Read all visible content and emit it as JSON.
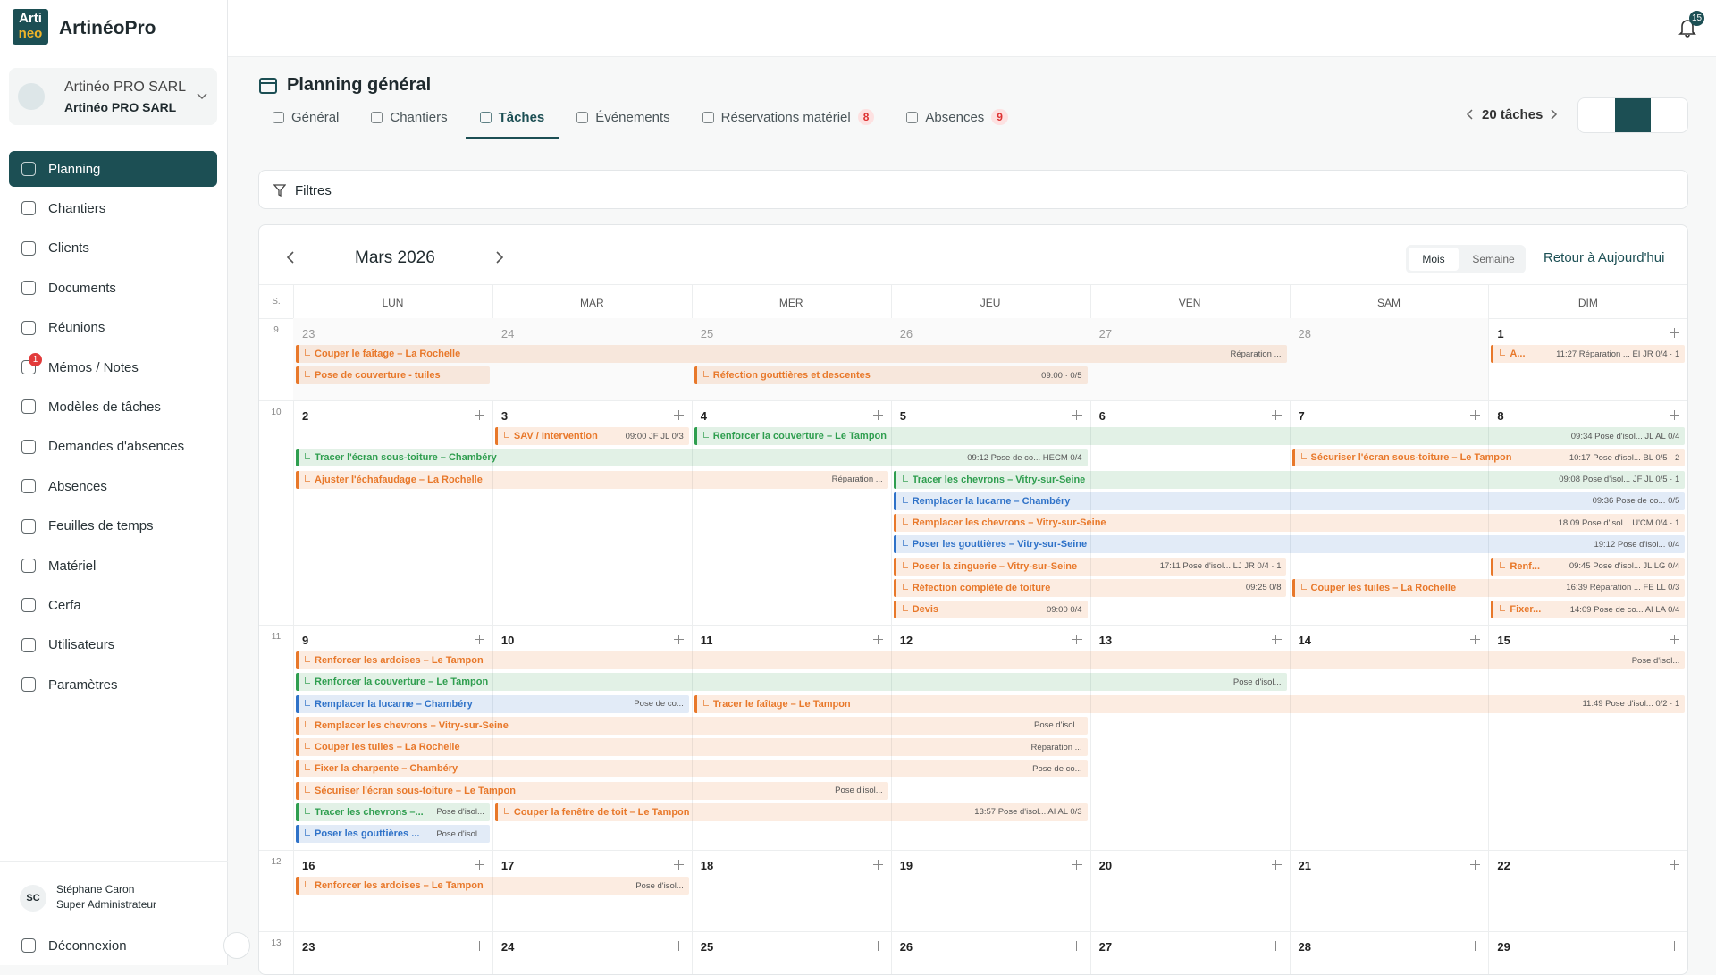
{
  "app": {
    "logo_top": "Arti",
    "logo_bottom": "neo",
    "name": "ArtinéoPro"
  },
  "notifications": 15,
  "company": {
    "name": "Artinéo PRO SARL",
    "subtitle": "Artinéo PRO SARL"
  },
  "nav": [
    {
      "label": "Planning"
    },
    {
      "label": "Chantiers"
    },
    {
      "label": "Clients"
    },
    {
      "label": "Documents"
    },
    {
      "label": "Réunions"
    },
    {
      "label": "Mémos / Notes",
      "badge": 1
    },
    {
      "label": "Modèles de tâches"
    },
    {
      "label": "Demandes d'absences"
    },
    {
      "label": "Absences"
    },
    {
      "label": "Feuilles de temps"
    },
    {
      "label": "Matériel"
    },
    {
      "label": "Cerfa"
    },
    {
      "label": "Utilisateurs"
    },
    {
      "label": "Paramètres"
    }
  ],
  "user": {
    "initials": "SC",
    "name": "Stéphane Caron",
    "role": "Super Administrateur"
  },
  "logout": "Déconnexion",
  "page": {
    "title": "Planning général",
    "tabs": [
      {
        "label": "Général"
      },
      {
        "label": "Chantiers"
      },
      {
        "label": "Tâches"
      },
      {
        "label": "Événements"
      },
      {
        "label": "Réservations matériel",
        "count": 8
      },
      {
        "label": "Absences",
        "count": 9
      }
    ],
    "task_count": "20 tâches",
    "filters": "Filtres"
  },
  "calendar": {
    "month": "Mars 2026",
    "views": [
      "Mois",
      "Semaine"
    ],
    "today": "Retour à Aujourd'hui",
    "week_header": "S.",
    "weekdays": [
      "LUN",
      "MAR",
      "MER",
      "JEU",
      "VEN",
      "SAM",
      "DIM"
    ],
    "weeks": [
      {
        "number": 9,
        "days": [
          23,
          24,
          25,
          26,
          27,
          28,
          1
        ],
        "tasks": [
          {
            "label": "Couper le faîtage – La Rochelle",
            "meta": "Réparation ...",
            "color": "#e8782a"
          },
          {
            "label": "Pose de couverture - tuiles",
            "meta": "",
            "color": "#e8782a"
          },
          {
            "label": "Réfection gouttières et descentes",
            "meta": "09:00 · 0/5",
            "color": "#e8782a"
          },
          {
            "label": "A...",
            "meta": "11:27 Réparation ... EI JR 0/4 · 1",
            "color": "#e8782a"
          }
        ]
      },
      {
        "number": 10,
        "days": [
          2,
          3,
          4,
          5,
          6,
          7,
          8
        ],
        "tasks": [
          {
            "label": "SAV / Intervention",
            "meta": "09:00 JF JL 0/3",
            "color": "#e8782a"
          },
          {
            "label": "Renforcer la couverture – Le Tampon",
            "meta": "09:34 Pose d'isol... JL AL 0/4",
            "color": "#2f9e4f"
          },
          {
            "label": "Tracer l'écran sous-toiture – Chambéry",
            "meta": "09:12 Pose de co... HECM 0/4",
            "color": "#2f9e4f"
          },
          {
            "label": "Sécuriser l'écran sous-toiture – Le Tampon",
            "meta": "10:17 Pose d'isol... BL 0/5 · 2",
            "color": "#e8782a"
          },
          {
            "label": "Ajuster l'échafaudage – La Rochelle",
            "meta": "Réparation ...",
            "color": "#e8782a"
          },
          {
            "label": "Tracer les chevrons – Vitry-sur-Seine",
            "meta": "09:08 Pose d'isol... JF JL 0/5 · 1",
            "color": "#2f9e4f"
          },
          {
            "label": "Remplacer la lucarne – Chambéry",
            "meta": "09:36 Pose de co... 0/5",
            "color": "#2f72c8"
          },
          {
            "label": "Remplacer les chevrons – Vitry-sur-Seine",
            "meta": "18:09 Pose d'isol... U'CM 0/4 · 1",
            "color": "#e8782a"
          },
          {
            "label": "Poser les gouttières – Vitry-sur-Seine",
            "meta": "19:12 Pose d'isol... 0/4",
            "color": "#2f72c8"
          },
          {
            "label": "Poser la zinguerie – Vitry-sur-Seine",
            "meta": "17:11 Pose d'isol... LJ JR 0/4 · 1",
            "color": "#e8782a"
          },
          {
            "label": "Renf...",
            "meta": "09:45 Pose d'isol... JL LG 0/4",
            "color": "#e8782a"
          },
          {
            "label": "Réfection complète de toiture",
            "meta": "09:25 0/8",
            "color": "#e8782a"
          },
          {
            "label": "Couper les tuiles – La Rochelle",
            "meta": "16:39 Réparation ... FE LL 0/3",
            "color": "#e8782a"
          },
          {
            "label": "Devis",
            "meta": "09:00 0/4",
            "color": "#e8782a"
          },
          {
            "label": "Fixer...",
            "meta": "14:09 Pose de co... AI LA 0/4",
            "color": "#e8782a"
          }
        ]
      },
      {
        "number": 11,
        "days": [
          9,
          10,
          11,
          12,
          13,
          14,
          15
        ],
        "tasks": [
          {
            "label": "Renforcer les ardoises – Le Tampon",
            "meta": "Pose d'isol...",
            "color": "#e8782a"
          },
          {
            "label": "Renforcer la couverture – Le Tampon",
            "meta": "Pose d'isol...",
            "color": "#2f9e4f"
          },
          {
            "label": "Remplacer la lucarne – Chambéry",
            "meta": "Pose de co...",
            "color": "#2f72c8"
          },
          {
            "label": "Tracer le faîtage – Le Tampon",
            "meta": "11:49 Pose d'isol... 0/2 · 1",
            "color": "#e8782a"
          },
          {
            "label": "Remplacer les chevrons – Vitry-sur-Seine",
            "meta": "Pose d'isol...",
            "color": "#e8782a"
          },
          {
            "label": "Couper les tuiles – La Rochelle",
            "meta": "Réparation ...",
            "color": "#e8782a"
          },
          {
            "label": "Fixer la charpente – Chambéry",
            "meta": "Pose de co...",
            "color": "#e8782a"
          },
          {
            "label": "Sécuriser l'écran sous-toiture – Le Tampon",
            "meta": "Pose d'isol...",
            "color": "#e8782a"
          },
          {
            "label": "Tracer les chevrons –...",
            "meta": "Pose d'isol...",
            "color": "#2f9e4f"
          },
          {
            "label": "Couper la fenêtre de toit – Le Tampon",
            "meta": "13:57 Pose d'isol... AI AL 0/3",
            "color": "#e8782a"
          },
          {
            "label": "Poser les gouttières ...",
            "meta": "Pose d'isol...",
            "color": "#2f72c8"
          }
        ]
      },
      {
        "number": 12,
        "days": [
          16,
          17,
          18,
          19,
          20,
          21,
          22
        ],
        "tasks": [
          {
            "label": "Renforcer les ardoises – Le Tampon",
            "meta": "Pose d'isol...",
            "color": "#e8782a"
          }
        ]
      },
      {
        "number": 13,
        "days": [
          23,
          24,
          25,
          26,
          27,
          28,
          29
        ],
        "tasks": []
      }
    ]
  }
}
